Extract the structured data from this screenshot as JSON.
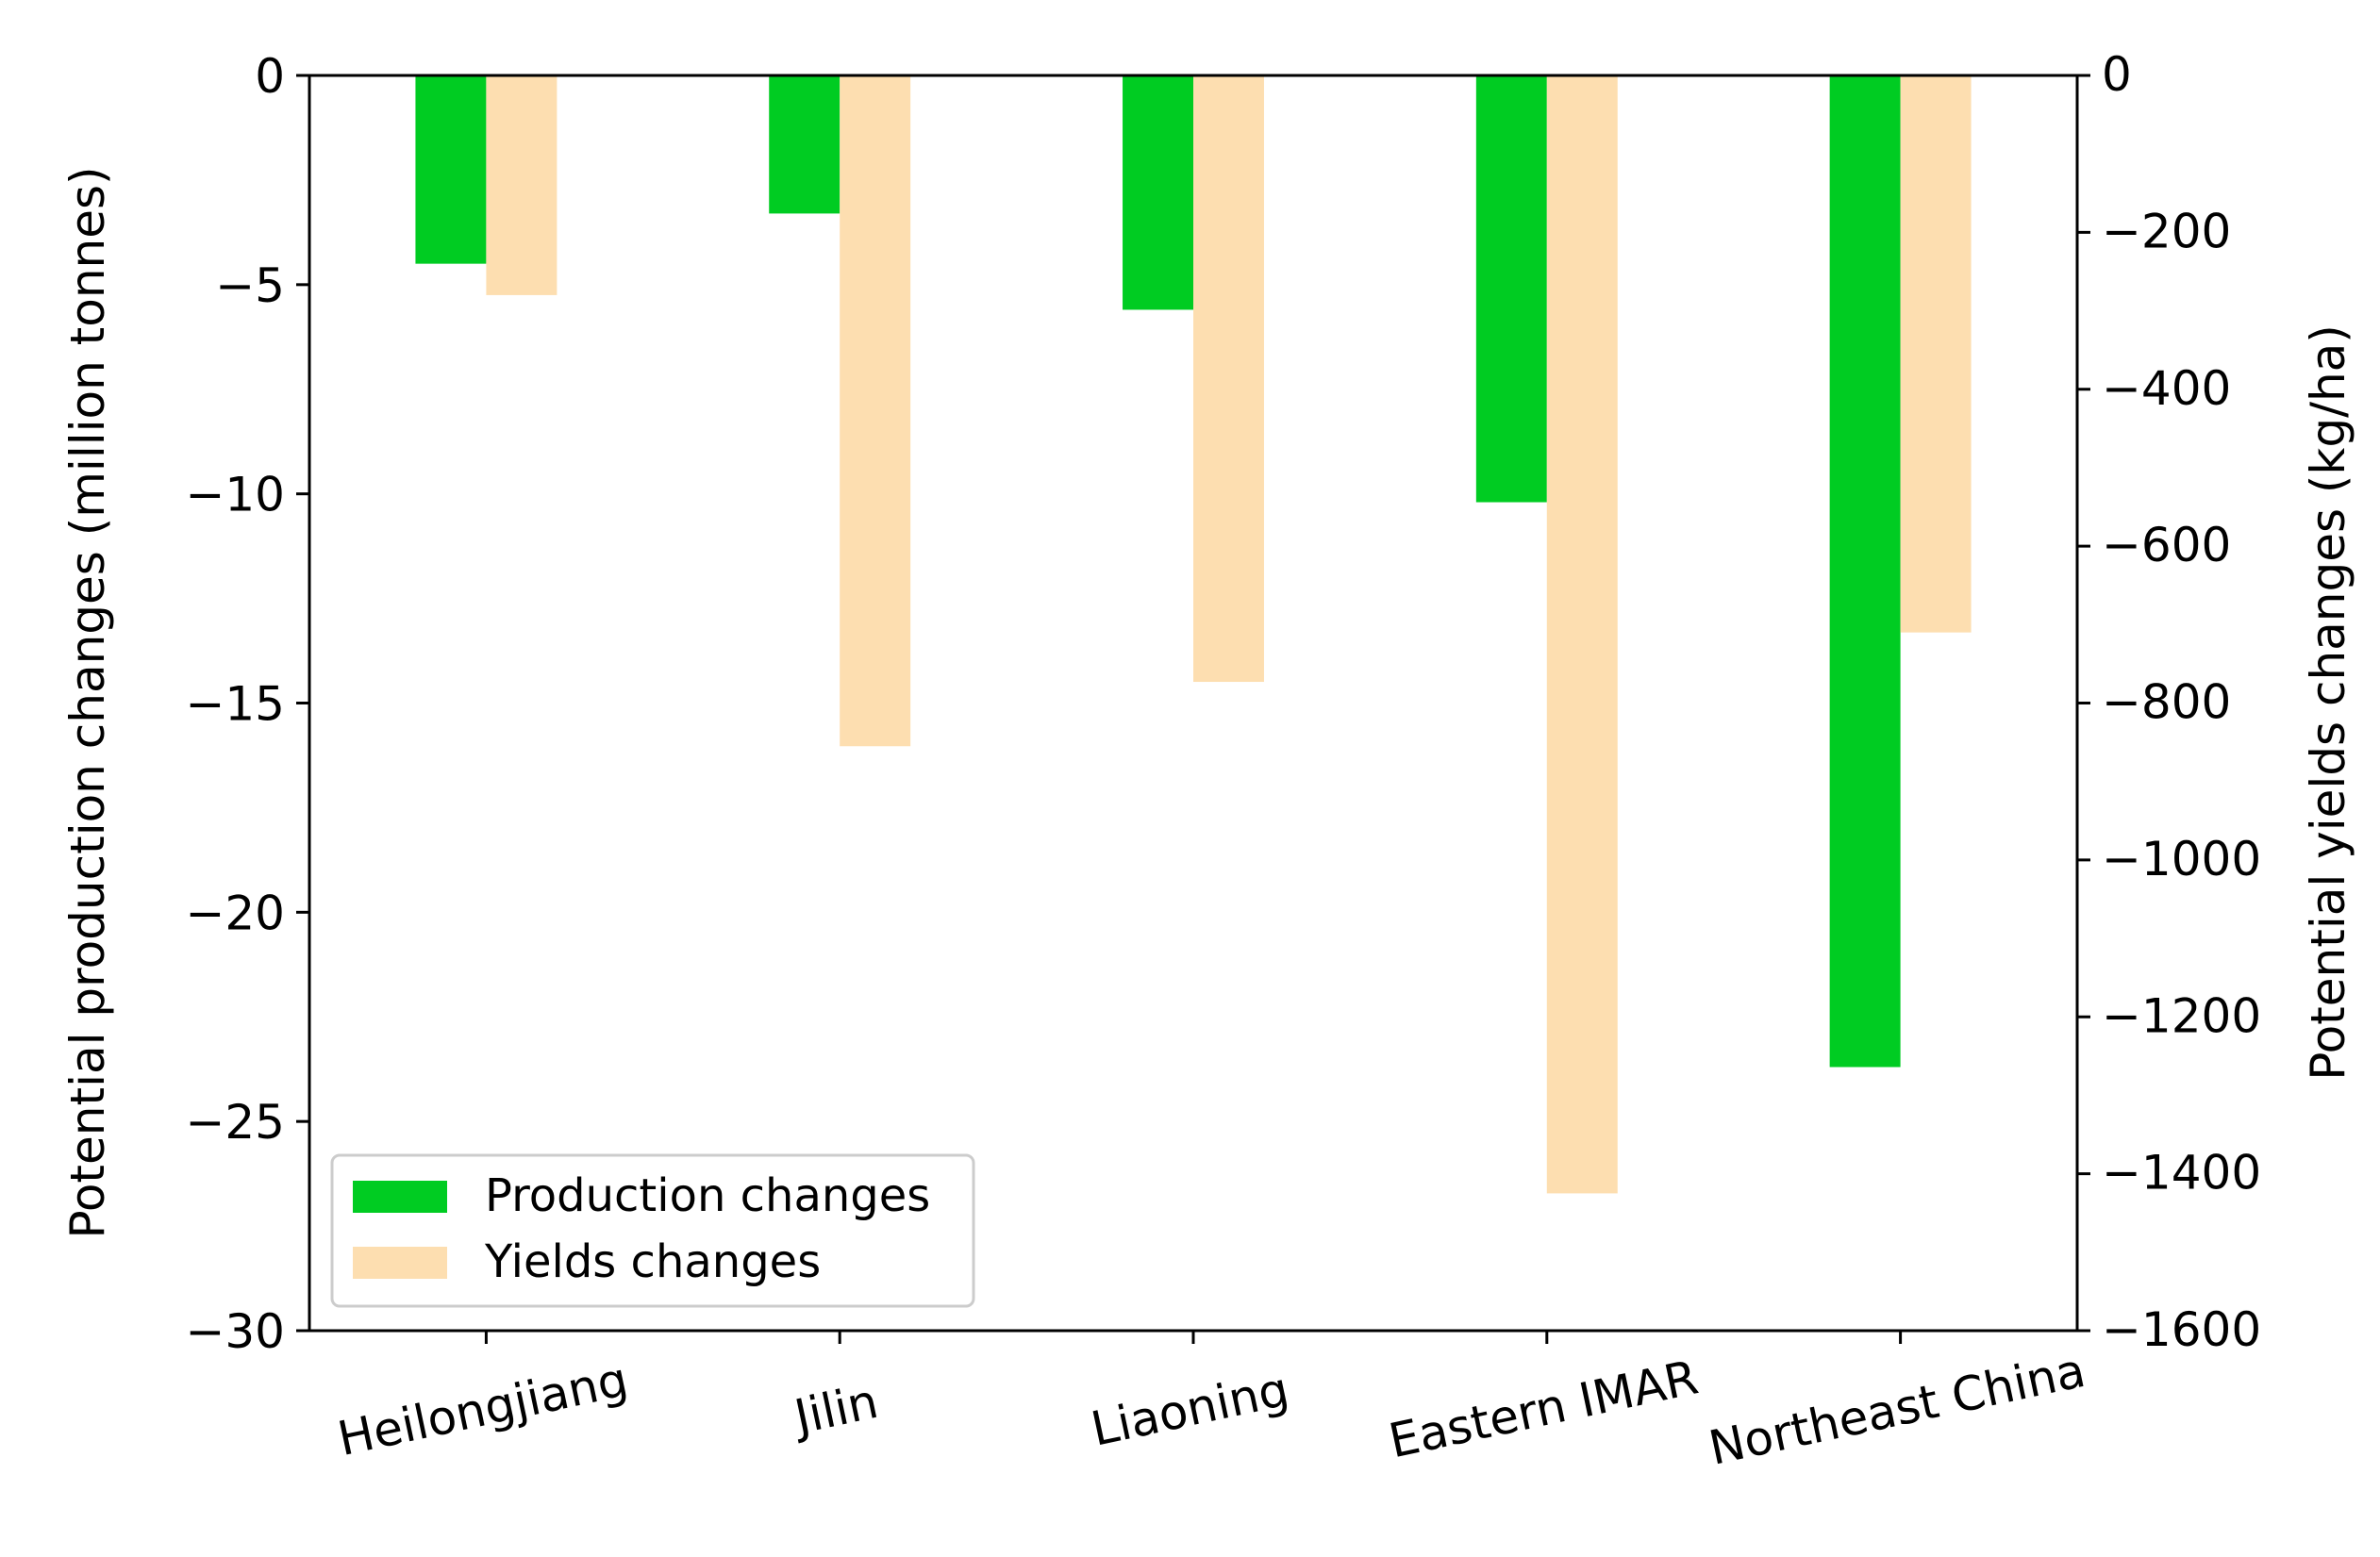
{
  "chart_data": {
    "type": "bar",
    "title": "",
    "categories": [
      "Heilongjiang",
      "Jilin",
      "Liaoning",
      "Eastern IMAR",
      "Northeast China"
    ],
    "xlabel": "",
    "ylabel": "Potential production changes (million tonnes)",
    "y2label": "Potential yields changes (kg/ha)",
    "ylim": [
      -30,
      0
    ],
    "y2lim": [
      -1600,
      0
    ],
    "yticks": [
      0,
      -5,
      -10,
      -15,
      -20,
      -25,
      -30
    ],
    "ytick_labels": [
      "0",
      "−5",
      "−10",
      "−15",
      "−20",
      "−25",
      "−30"
    ],
    "y2ticks": [
      0,
      -200,
      -400,
      -600,
      -800,
      -1000,
      -1200,
      -1400,
      -1600
    ],
    "y2tick_labels": [
      "0",
      "−200",
      "−400",
      "−600",
      "−800",
      "−1000",
      "−1200",
      "−1400",
      "−1600"
    ],
    "grid": false,
    "legend_position": "bottom-left",
    "series": [
      {
        "name": "Production changes",
        "axis": "left",
        "color": "#00cc22",
        "values": [
          -4.5,
          -3.3,
          -5.6,
          -10.2,
          -23.7
        ]
      },
      {
        "name": "Yields changes",
        "axis": "right",
        "color": "#fddeb0",
        "values": [
          -280,
          -855,
          -773,
          -1425,
          -710
        ]
      }
    ]
  }
}
